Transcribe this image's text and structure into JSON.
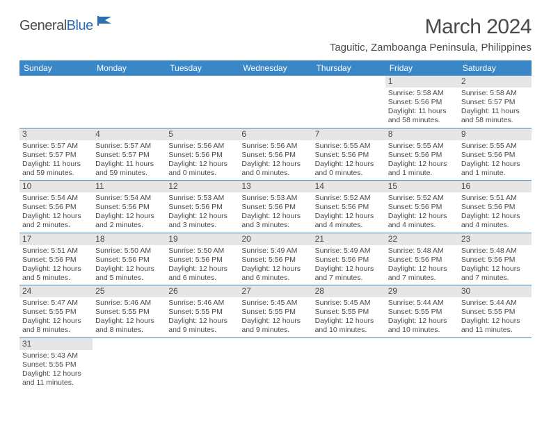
{
  "logo": {
    "word1": "General",
    "word2": "Blue"
  },
  "title": "March 2024",
  "location": "Taguitic, Zamboanga Peninsula, Philippines",
  "colors": {
    "header_bg": "#3a87c7",
    "header_text": "#ffffff",
    "daynum_bg": "#e6e6e6",
    "text": "#4a4a4a",
    "row_border": "#3a87c7",
    "page_bg": "#ffffff"
  },
  "font": {
    "family": "Arial",
    "title_size_pt": 30,
    "location_size_pt": 15,
    "dayhead_size_pt": 12,
    "body_size_pt": 10.5
  },
  "dayheads": [
    "Sunday",
    "Monday",
    "Tuesday",
    "Wednesday",
    "Thursday",
    "Friday",
    "Saturday"
  ],
  "weeks": [
    [
      null,
      null,
      null,
      null,
      null,
      {
        "n": "1",
        "sunrise": "Sunrise: 5:58 AM",
        "sunset": "Sunset: 5:56 PM",
        "daylight": "Daylight: 11 hours and 58 minutes."
      },
      {
        "n": "2",
        "sunrise": "Sunrise: 5:58 AM",
        "sunset": "Sunset: 5:57 PM",
        "daylight": "Daylight: 11 hours and 58 minutes."
      }
    ],
    [
      {
        "n": "3",
        "sunrise": "Sunrise: 5:57 AM",
        "sunset": "Sunset: 5:57 PM",
        "daylight": "Daylight: 11 hours and 59 minutes."
      },
      {
        "n": "4",
        "sunrise": "Sunrise: 5:57 AM",
        "sunset": "Sunset: 5:57 PM",
        "daylight": "Daylight: 11 hours and 59 minutes."
      },
      {
        "n": "5",
        "sunrise": "Sunrise: 5:56 AM",
        "sunset": "Sunset: 5:56 PM",
        "daylight": "Daylight: 12 hours and 0 minutes."
      },
      {
        "n": "6",
        "sunrise": "Sunrise: 5:56 AM",
        "sunset": "Sunset: 5:56 PM",
        "daylight": "Daylight: 12 hours and 0 minutes."
      },
      {
        "n": "7",
        "sunrise": "Sunrise: 5:55 AM",
        "sunset": "Sunset: 5:56 PM",
        "daylight": "Daylight: 12 hours and 0 minutes."
      },
      {
        "n": "8",
        "sunrise": "Sunrise: 5:55 AM",
        "sunset": "Sunset: 5:56 PM",
        "daylight": "Daylight: 12 hours and 1 minute."
      },
      {
        "n": "9",
        "sunrise": "Sunrise: 5:55 AM",
        "sunset": "Sunset: 5:56 PM",
        "daylight": "Daylight: 12 hours and 1 minute."
      }
    ],
    [
      {
        "n": "10",
        "sunrise": "Sunrise: 5:54 AM",
        "sunset": "Sunset: 5:56 PM",
        "daylight": "Daylight: 12 hours and 2 minutes."
      },
      {
        "n": "11",
        "sunrise": "Sunrise: 5:54 AM",
        "sunset": "Sunset: 5:56 PM",
        "daylight": "Daylight: 12 hours and 2 minutes."
      },
      {
        "n": "12",
        "sunrise": "Sunrise: 5:53 AM",
        "sunset": "Sunset: 5:56 PM",
        "daylight": "Daylight: 12 hours and 3 minutes."
      },
      {
        "n": "13",
        "sunrise": "Sunrise: 5:53 AM",
        "sunset": "Sunset: 5:56 PM",
        "daylight": "Daylight: 12 hours and 3 minutes."
      },
      {
        "n": "14",
        "sunrise": "Sunrise: 5:52 AM",
        "sunset": "Sunset: 5:56 PM",
        "daylight": "Daylight: 12 hours and 4 minutes."
      },
      {
        "n": "15",
        "sunrise": "Sunrise: 5:52 AM",
        "sunset": "Sunset: 5:56 PM",
        "daylight": "Daylight: 12 hours and 4 minutes."
      },
      {
        "n": "16",
        "sunrise": "Sunrise: 5:51 AM",
        "sunset": "Sunset: 5:56 PM",
        "daylight": "Daylight: 12 hours and 4 minutes."
      }
    ],
    [
      {
        "n": "17",
        "sunrise": "Sunrise: 5:51 AM",
        "sunset": "Sunset: 5:56 PM",
        "daylight": "Daylight: 12 hours and 5 minutes."
      },
      {
        "n": "18",
        "sunrise": "Sunrise: 5:50 AM",
        "sunset": "Sunset: 5:56 PM",
        "daylight": "Daylight: 12 hours and 5 minutes."
      },
      {
        "n": "19",
        "sunrise": "Sunrise: 5:50 AM",
        "sunset": "Sunset: 5:56 PM",
        "daylight": "Daylight: 12 hours and 6 minutes."
      },
      {
        "n": "20",
        "sunrise": "Sunrise: 5:49 AM",
        "sunset": "Sunset: 5:56 PM",
        "daylight": "Daylight: 12 hours and 6 minutes."
      },
      {
        "n": "21",
        "sunrise": "Sunrise: 5:49 AM",
        "sunset": "Sunset: 5:56 PM",
        "daylight": "Daylight: 12 hours and 7 minutes."
      },
      {
        "n": "22",
        "sunrise": "Sunrise: 5:48 AM",
        "sunset": "Sunset: 5:56 PM",
        "daylight": "Daylight: 12 hours and 7 minutes."
      },
      {
        "n": "23",
        "sunrise": "Sunrise: 5:48 AM",
        "sunset": "Sunset: 5:56 PM",
        "daylight": "Daylight: 12 hours and 7 minutes."
      }
    ],
    [
      {
        "n": "24",
        "sunrise": "Sunrise: 5:47 AM",
        "sunset": "Sunset: 5:55 PM",
        "daylight": "Daylight: 12 hours and 8 minutes."
      },
      {
        "n": "25",
        "sunrise": "Sunrise: 5:46 AM",
        "sunset": "Sunset: 5:55 PM",
        "daylight": "Daylight: 12 hours and 8 minutes."
      },
      {
        "n": "26",
        "sunrise": "Sunrise: 5:46 AM",
        "sunset": "Sunset: 5:55 PM",
        "daylight": "Daylight: 12 hours and 9 minutes."
      },
      {
        "n": "27",
        "sunrise": "Sunrise: 5:45 AM",
        "sunset": "Sunset: 5:55 PM",
        "daylight": "Daylight: 12 hours and 9 minutes."
      },
      {
        "n": "28",
        "sunrise": "Sunrise: 5:45 AM",
        "sunset": "Sunset: 5:55 PM",
        "daylight": "Daylight: 12 hours and 10 minutes."
      },
      {
        "n": "29",
        "sunrise": "Sunrise: 5:44 AM",
        "sunset": "Sunset: 5:55 PM",
        "daylight": "Daylight: 12 hours and 10 minutes."
      },
      {
        "n": "30",
        "sunrise": "Sunrise: 5:44 AM",
        "sunset": "Sunset: 5:55 PM",
        "daylight": "Daylight: 12 hours and 11 minutes."
      }
    ],
    [
      {
        "n": "31",
        "sunrise": "Sunrise: 5:43 AM",
        "sunset": "Sunset: 5:55 PM",
        "daylight": "Daylight: 12 hours and 11 minutes."
      },
      null,
      null,
      null,
      null,
      null,
      null
    ]
  ]
}
